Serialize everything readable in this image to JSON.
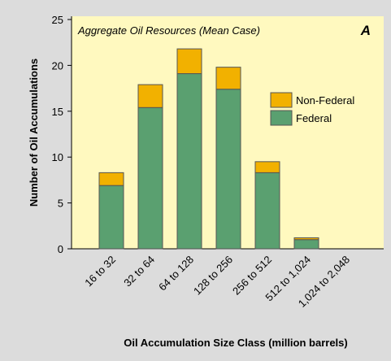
{
  "chart_data": {
    "type": "stacked_bar",
    "title": "Aggregate Oil Resources (Mean Case)",
    "panel_label": "A",
    "x_label": "Oil Accumulation Size Class (million barrels)",
    "y_label": "Number of Oil Accumulations",
    "categories": [
      "16 to 32",
      "32 to 64",
      "64 to 128",
      "128 to 256",
      "256 to 512",
      "512 to 1,024",
      "1,024 to 2,048"
    ],
    "series": [
      {
        "name": "Federal",
        "color": "#5aa070",
        "values": [
          6.9,
          15.4,
          19.1,
          17.4,
          8.3,
          1.0,
          0
        ]
      },
      {
        "name": "Non-Federal",
        "color": "#f2b100",
        "values": [
          1.4,
          2.5,
          2.7,
          2.4,
          1.2,
          0.2,
          0
        ]
      }
    ],
    "ylim": [
      0,
      25
    ],
    "yticks": [
      0,
      5,
      10,
      15,
      20,
      25
    ]
  }
}
